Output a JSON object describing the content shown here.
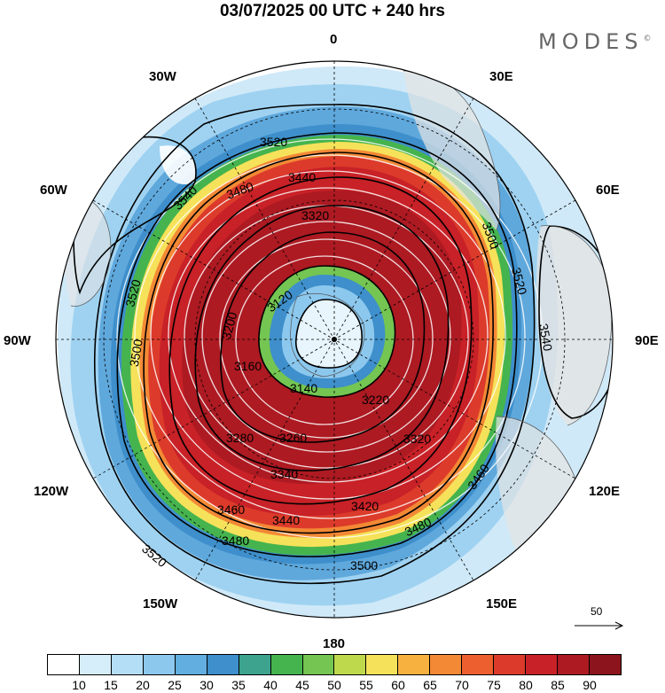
{
  "title": "03/07/2025  00 UTC  + 240 hrs",
  "brand": "MODES",
  "brand_mark": "©",
  "longitude_labels": [
    "0",
    "30E",
    "60E",
    "90E",
    "120E",
    "150E",
    "180",
    "150W",
    "120W",
    "90W",
    "60W",
    "30W"
  ],
  "reference_vector": {
    "label": "50",
    "value": 50
  },
  "colorbar": {
    "colors": [
      "#ffffff",
      "#d6eefa",
      "#b4def6",
      "#8cc8ee",
      "#62aee0",
      "#3e8fcb",
      "#3da38e",
      "#46b44e",
      "#74c552",
      "#bfd94c",
      "#f6e25a",
      "#f7b13f",
      "#f38935",
      "#ed5f2e",
      "#dc3b2b",
      "#c82127",
      "#ad1a22",
      "#8c141c"
    ],
    "ticks": [
      "10",
      "15",
      "20",
      "25",
      "30",
      "35",
      "40",
      "45",
      "50",
      "55",
      "60",
      "65",
      "70",
      "75",
      "80",
      "85",
      "90"
    ]
  },
  "contour_labels": [
    "3520",
    "3540",
    "3520",
    "3500",
    "3480",
    "3440",
    "3320",
    "3500",
    "3520",
    "3540",
    "3120",
    "3200",
    "3160",
    "3140",
    "3220",
    "3260",
    "3280",
    "3340",
    "3320",
    "3420",
    "3440",
    "3460",
    "3480",
    "3500",
    "3520",
    "3480",
    "3460"
  ],
  "icons": {
    "pole_marker": "dot-icon",
    "reference_arrow": "arrow-right-icon"
  }
}
